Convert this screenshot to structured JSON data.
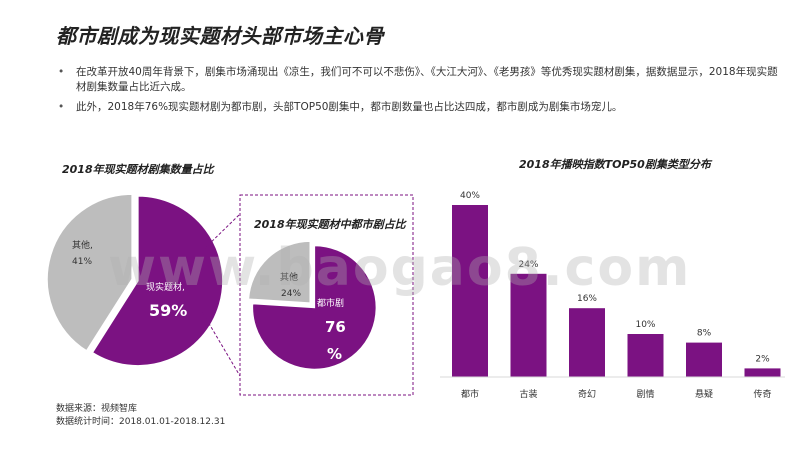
{
  "header": {
    "title": "都市剧成为现实题材头部市场主心骨"
  },
  "bullets": [
    "在改革开放40周年背景下，剧集市场涌现出《凉生，我们可不可以不悲伤》、《大江大河》、《老男孩》等优秀现实题材剧集，据数据显示，2018年现实题材剧集数量占比近六成。",
    "此外，2018年76%现实题材剧为都市剧，头部TOP50剧集中，都市剧数量也占比达四成，都市剧成为剧集市场宠儿。"
  ],
  "source": {
    "line1": "数据来源：视频智库",
    "line2": "数据统计时间：2018.01.01-2018.12.31"
  },
  "watermark": "www.baogao8.com",
  "colors": {
    "purple": "#7B1282",
    "gray": "#BDBDBD",
    "dashed_border": "#7B1282"
  },
  "chart_data": [
    {
      "type": "pie",
      "title": "2018年现实题材剧集数量占比",
      "slices": [
        {
          "label": "现实题材,",
          "value": 59,
          "value_label": "59%",
          "color": "#7B1282"
        },
        {
          "label": "其他,",
          "value": 41,
          "value_label": "41%",
          "color": "#BDBDBD"
        }
      ]
    },
    {
      "type": "pie",
      "title": "2018年现实题材中都市剧占比",
      "slices": [
        {
          "label": "都市剧",
          "value": 76,
          "value_label_line1": "76",
          "value_label_line2": "%",
          "color": "#7B1282"
        },
        {
          "label": "其他",
          "value": 24,
          "value_label": "24%",
          "color": "#BDBDBD"
        }
      ]
    },
    {
      "type": "bar",
      "title": "2018年播映指数TOP50剧集类型分布",
      "categories": [
        "都市",
        "古装",
        "奇幻",
        "剧情",
        "悬疑",
        "传奇"
      ],
      "values": [
        40,
        24,
        16,
        10,
        8,
        2
      ],
      "value_labels": [
        "40%",
        "24%",
        "16%",
        "10%",
        "8%",
        "2%"
      ],
      "ylim": [
        0,
        40
      ],
      "color": "#7B1282"
    }
  ]
}
